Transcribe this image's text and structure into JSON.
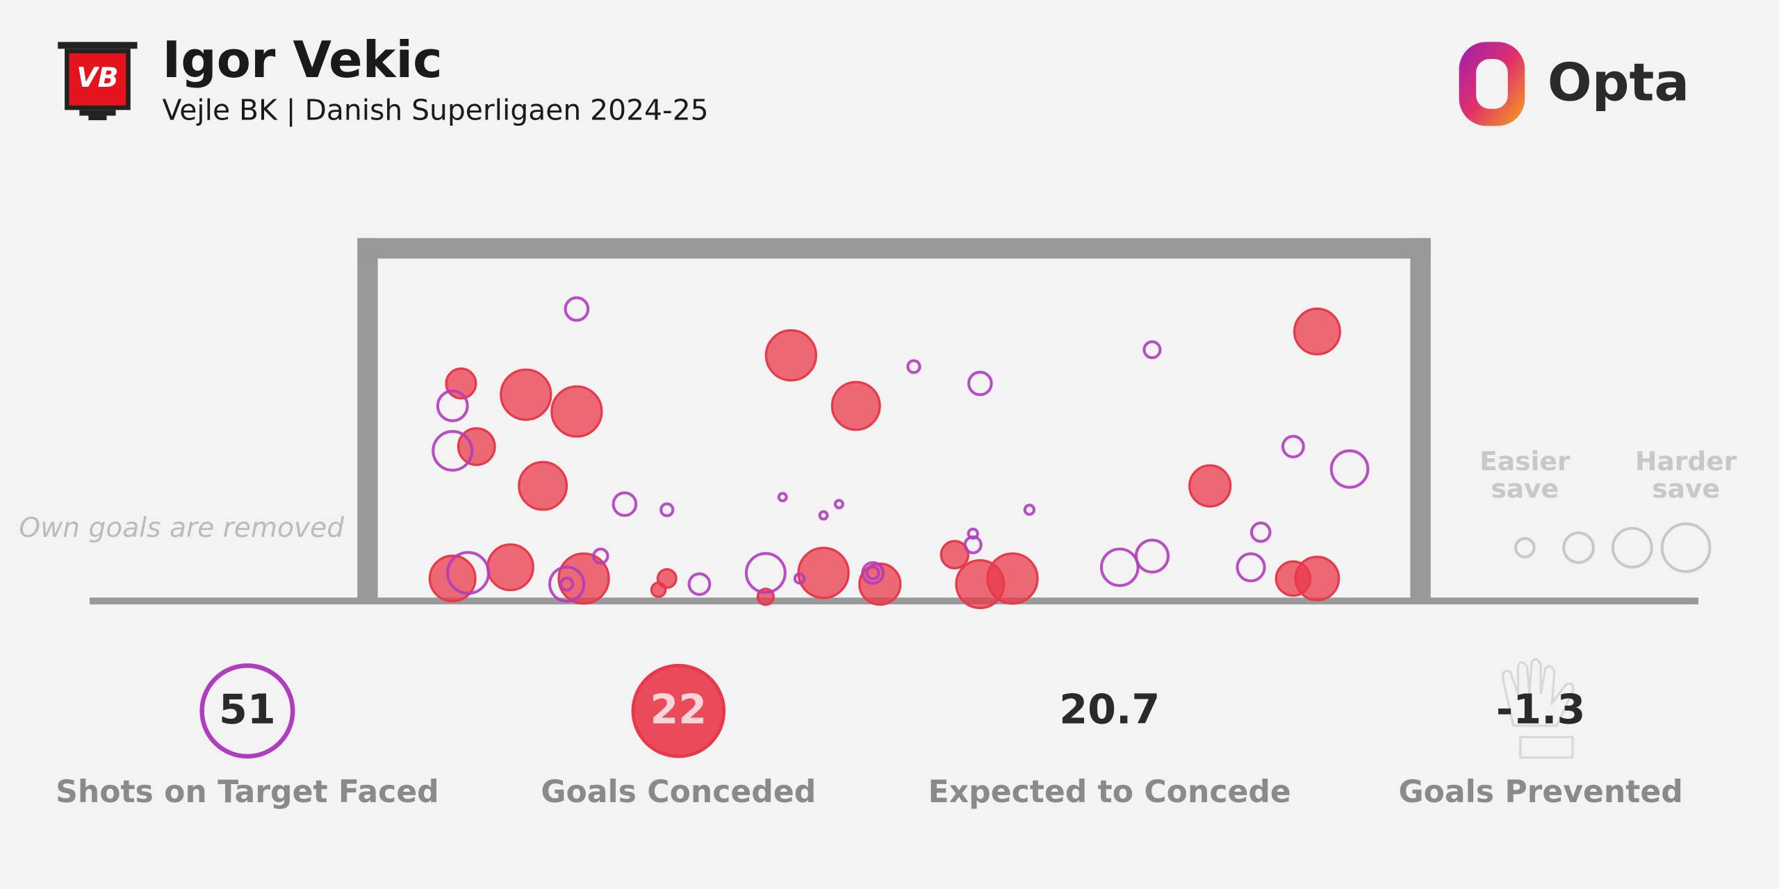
{
  "header": {
    "title": "Igor Vekic",
    "subtitle": "Vejle BK | Danish Superligaen 2024-25",
    "badge": "VB",
    "brand": "Opta"
  },
  "chart_data": {
    "type": "scatter",
    "note": "Own goals are removed",
    "xlim": [
      0,
      7.32
    ],
    "ylim": [
      0,
      2.44
    ],
    "series": [
      {
        "color": "#e8394a",
        "filled": true,
        "x": [
          0.59,
          1.05,
          1.41,
          0.7,
          1.17,
          2.93,
          3.39,
          6.66,
          5.9,
          0.53,
          0.94,
          1.46,
          2.05,
          1.99,
          2.75,
          3.16,
          3.56,
          4.09,
          4.27,
          4.5,
          6.49,
          6.66
        ],
        "values": [
          1.55,
          1.47,
          1.35,
          1.1,
          0.82,
          1.75,
          1.39,
          1.92,
          0.82,
          0.16,
          0.24,
          0.16,
          0.16,
          0.08,
          0.03,
          0.2,
          0.12,
          0.33,
          0.12,
          0.16,
          0.16,
          0.16
        ],
        "size": [
          0.31,
          0.88,
          0.88,
          0.47,
          0.8,
          0.88,
          0.8,
          0.73,
          0.59,
          0.73,
          0.73,
          0.88,
          0.12,
          0.07,
          0.09,
          0.88,
          0.59,
          0.26,
          0.8,
          0.88,
          0.41,
          0.66
        ]
      },
      {
        "color": "#b03cc0",
        "filled": false,
        "x": [
          1.41,
          0.53,
          0.53,
          1.75,
          2.05,
          2.87,
          3.27,
          3.16,
          3.8,
          4.27,
          5.49,
          4.62,
          6.49,
          6.89,
          6.26,
          5.49,
          5.26,
          6.19,
          4.22,
          4.22,
          3.51,
          2.75,
          2.99,
          2.28,
          1.58,
          1.34,
          1.34,
          0.64,
          3.51
        ],
        "values": [
          2.08,
          1.39,
          1.07,
          0.69,
          0.65,
          0.74,
          0.69,
          0.61,
          1.67,
          1.55,
          1.79,
          0.65,
          1.1,
          0.94,
          0.49,
          0.32,
          0.24,
          0.24,
          0.48,
          0.4,
          0.2,
          0.2,
          0.16,
          0.12,
          0.32,
          0.12,
          0.12,
          0.2,
          0.2
        ],
        "size": [
          0.18,
          0.31,
          0.53,
          0.18,
          0.05,
          0.02,
          0.02,
          0.02,
          0.05,
          0.18,
          0.09,
          0.03,
          0.15,
          0.47,
          0.12,
          0.36,
          0.47,
          0.26,
          0.03,
          0.09,
          0.15,
          0.53,
          0.03,
          0.15,
          0.07,
          0.41,
          0.05,
          0.59,
          0.05
        ]
      }
    ],
    "size_legend": {
      "easier": "Easier save",
      "harder": "Harder save",
      "sizes": [
        0.12,
        0.31,
        0.53,
        0.8
      ]
    }
  },
  "stats": [
    {
      "value": 51,
      "label": "Shots on Target Faced"
    },
    {
      "value": 22,
      "label": "Goals Conceded"
    },
    {
      "value": 20.7,
      "label": "Expected to Concede"
    },
    {
      "value": -1.3,
      "label": "Goals Prevented"
    }
  ]
}
